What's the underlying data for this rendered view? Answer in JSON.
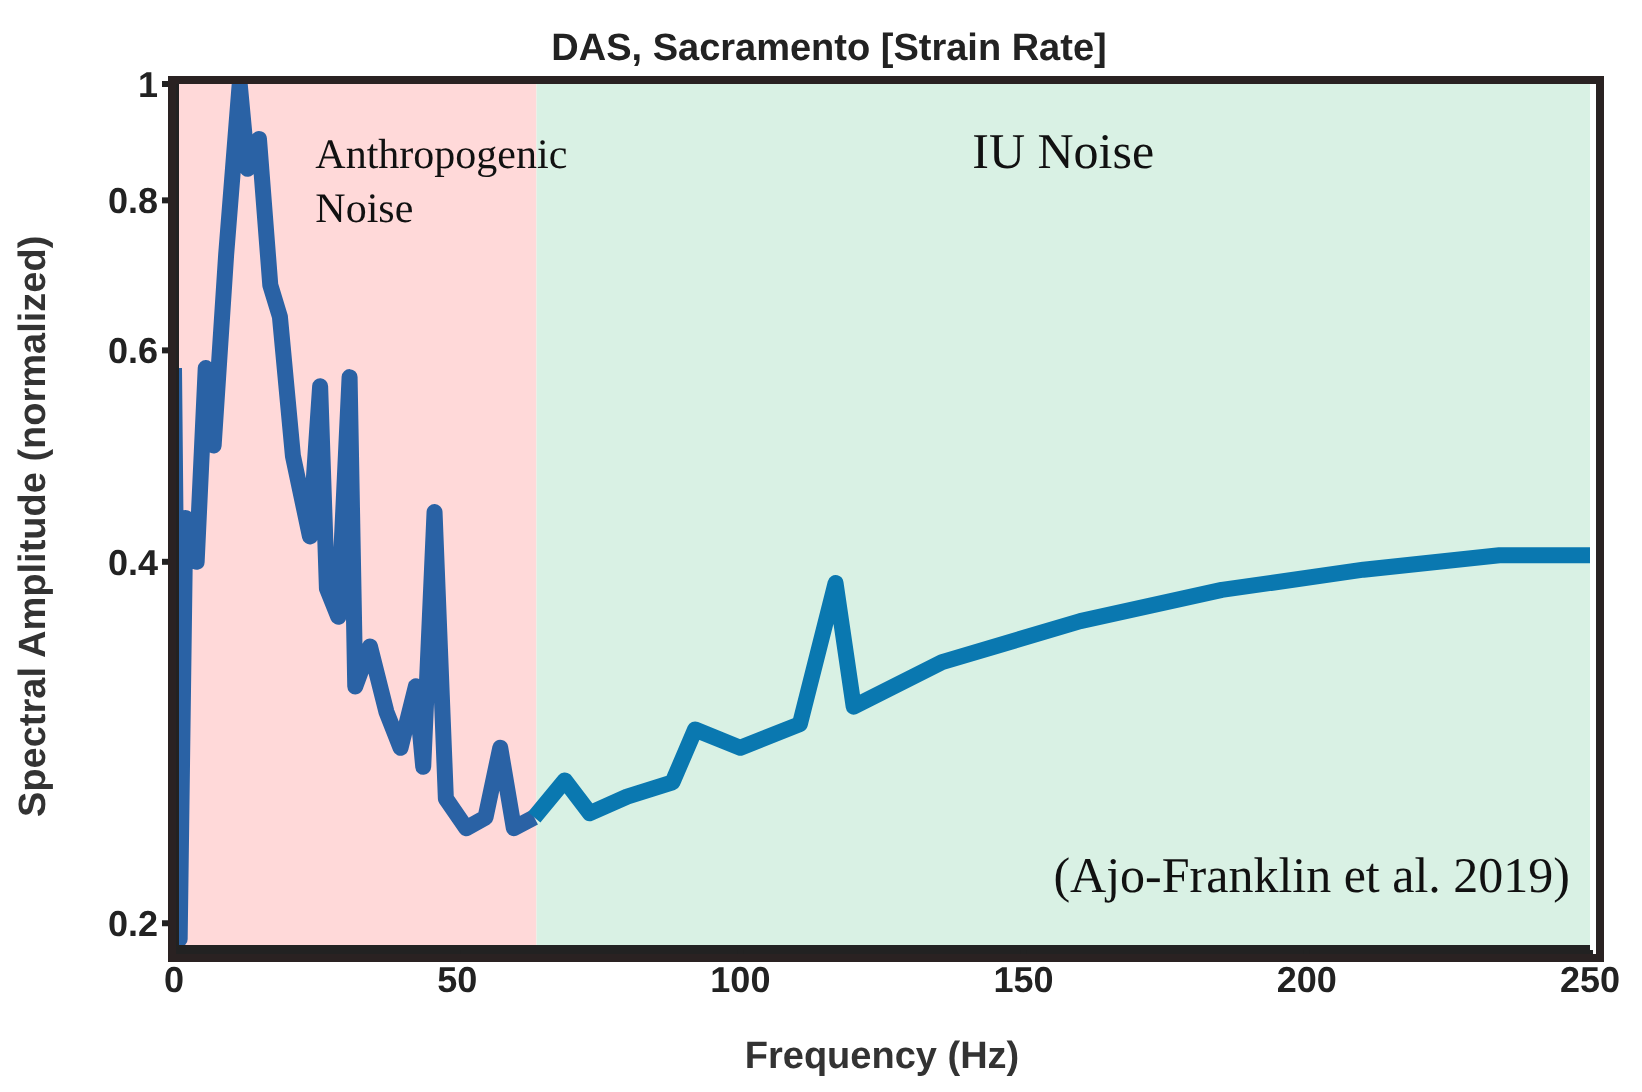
{
  "chart_data": {
    "type": "line",
    "title": "DAS, Sacramento [Strain Rate]",
    "xlabel": "Frequency (Hz)",
    "ylabel": "Spectral Amplitude (normalized)",
    "series": [
      {
        "color": "#2a62a5",
        "x": [
          0,
          1,
          2,
          4,
          5.6,
          7,
          9.2,
          11.6,
          13,
          15,
          17,
          18.7,
          21,
          24,
          25.8,
          27,
          29,
          31,
          32,
          34.6,
          37.5,
          40,
          42.7,
          44,
          46,
          48,
          51.6,
          55,
          57.6,
          60,
          63.6
        ],
        "values": [
          0.58,
          0.194,
          0.435,
          0.4,
          0.58,
          0.5,
          0.72,
          1.0,
          0.85,
          0.9,
          0.68,
          0.64,
          0.49,
          0.42,
          0.56,
          0.38,
          0.36,
          0.57,
          0.315,
          0.34,
          0.3,
          0.28,
          0.315,
          0.27,
          0.44,
          0.254,
          0.24,
          0.245,
          0.28,
          0.24,
          0.245
        ]
      },
      {
        "color": "#0a78b0",
        "x": [
          63.6,
          69,
          73.4,
          80,
          88,
          92,
          100,
          110.5,
          116.8,
          120,
          135.6,
          160,
          185,
          210,
          234,
          250
        ],
        "values": [
          0.245,
          0.263,
          0.247,
          0.255,
          0.262,
          0.29,
          0.28,
          0.293,
          0.384,
          0.303,
          0.33,
          0.357,
          0.379,
          0.394,
          0.405,
          0.405
        ]
      }
    ],
    "xlim": [
      0,
      250
    ],
    "xticks": [
      0,
      50,
      100,
      150,
      200,
      250
    ],
    "ylim": [
      0.19,
      1
    ],
    "yticks": [
      0.2,
      0.4,
      0.6,
      0.8,
      1
    ],
    "log": true,
    "grid": false,
    "marker": "none",
    "line_style": "solid",
    "bands": [
      {
        "axis": "x",
        "from": 0,
        "to": 64,
        "label": "Anthropogenic Noise",
        "color": "#ffd9d9"
      },
      {
        "axis": "x",
        "from": 64,
        "to": 250,
        "label": "IU Noise",
        "color": "#d9f1e4"
      }
    ],
    "annotations": [
      "(Ajo-Franklin et al. 2019)"
    ]
  }
}
